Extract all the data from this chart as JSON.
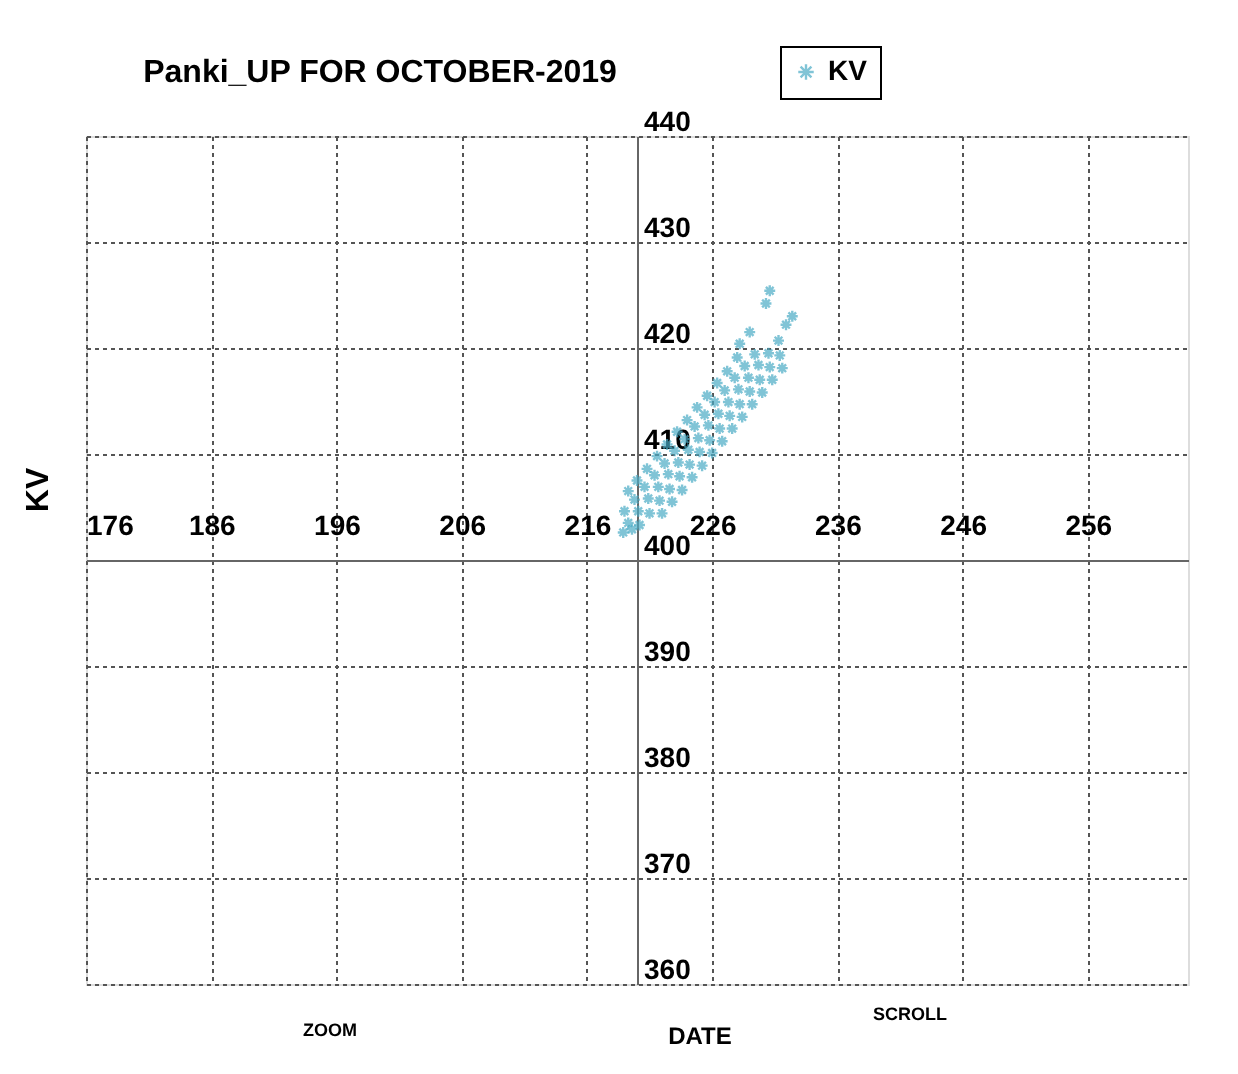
{
  "chart_data": {
    "type": "scatter",
    "title": "Panki_UP FOR OCTOBER-2019",
    "xlabel": "DATE",
    "ylabel": "KV",
    "annotations": [
      "ZOOM",
      "SCROLL"
    ],
    "xlim": [
      176,
      264
    ],
    "xticks": [
      176,
      186,
      196,
      206,
      216,
      226,
      236,
      246,
      256
    ],
    "ylim": [
      360,
      440
    ],
    "yticks": [
      360,
      370,
      380,
      390,
      400,
      410,
      420,
      430,
      440
    ],
    "grid": true,
    "legend": "top right",
    "marker": "cross",
    "series": [
      {
        "name": "KV",
        "color": "#4bacc6",
        "x": [
          219.3,
          220,
          220.8,
          221.6,
          222.4,
          223.2,
          224,
          224.8,
          225.6,
          226.4,
          227.2,
          228,
          219,
          219.8,
          220.6,
          221.4,
          222.2,
          223,
          223.8,
          224.6,
          225.4,
          226.2,
          227,
          227.8,
          228.6,
          229.4,
          219.3,
          220.1,
          220.9,
          221.7,
          222.5,
          223.3,
          224.1,
          224.9,
          225.7,
          226.5,
          227.3,
          228.1,
          228.9,
          229.7,
          230.5,
          231.3,
          220.2,
          221,
          221.8,
          222.6,
          223.4,
          224.2,
          225,
          225.8,
          226.6,
          227.4,
          228.2,
          229,
          229.8,
          230.6,
          231.4,
          222,
          222.8,
          223.6,
          224.4,
          225.2,
          226,
          226.8,
          227.6,
          228.4,
          229.2,
          230,
          230.8,
          231.6,
          218.9,
          219.6,
          230.6,
          230.3,
          232.4,
          231.9,
          229,
          228.2
        ],
        "values": [
          406.5,
          407.5,
          408.6,
          409.8,
          410.9,
          412.1,
          413.2,
          414.4,
          415.5,
          416.7,
          417.8,
          419.1,
          404.6,
          405.7,
          406.9,
          408.0,
          409.1,
          410.3,
          411.4,
          412.6,
          413.7,
          414.9,
          416.0,
          417.2,
          418.3,
          419.4,
          403.5,
          404.6,
          405.8,
          406.9,
          408.1,
          409.2,
          410.4,
          411.5,
          412.7,
          413.8,
          414.9,
          416.1,
          417.2,
          418.4,
          419.5,
          420.7,
          403.3,
          404.4,
          405.6,
          406.7,
          407.9,
          409.0,
          410.2,
          411.3,
          412.4,
          413.6,
          414.7,
          415.9,
          417.0,
          418.2,
          419.3,
          404.4,
          405.5,
          406.6,
          407.8,
          408.9,
          410.1,
          411.2,
          412.4,
          413.5,
          414.7,
          415.8,
          417.0,
          418.1,
          402.6,
          402.9,
          425.4,
          424.2,
          423.0,
          422.2,
          421.5,
          420.4
        ]
      }
    ]
  }
}
